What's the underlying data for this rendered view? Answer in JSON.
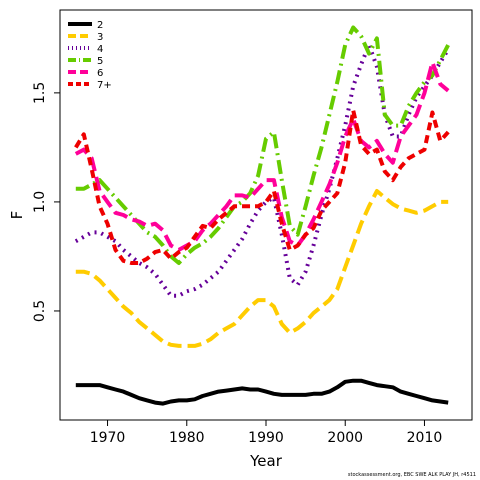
{
  "chart_data": {
    "type": "line",
    "title": "",
    "xlabel": "Year",
    "ylabel": "F",
    "xlim": [
      1964,
      2016
    ],
    "ylim": [
      0.0,
      1.88
    ],
    "x_ticks": [
      1970,
      1980,
      1990,
      2000,
      2010
    ],
    "y_ticks": [
      0.5,
      1.0,
      1.5
    ],
    "y_tick_labels": [
      "0.5",
      "1.0",
      "1.5"
    ],
    "legend_position": "top-left",
    "x": [
      1966,
      1967,
      1968,
      1969,
      1970,
      1971,
      1972,
      1973,
      1974,
      1975,
      1976,
      1977,
      1978,
      1979,
      1980,
      1981,
      1982,
      1983,
      1984,
      1985,
      1986,
      1987,
      1988,
      1989,
      1990,
      1991,
      1992,
      1993,
      1994,
      1995,
      1996,
      1997,
      1998,
      1999,
      2000,
      2001,
      2002,
      2003,
      2004,
      2005,
      2006,
      2007,
      2008,
      2009,
      2010,
      2011,
      2012,
      2013
    ],
    "series": [
      {
        "name": "2",
        "color": "#000000",
        "dash": "solid",
        "values": [
          0.16,
          0.16,
          0.16,
          0.16,
          0.15,
          0.14,
          0.13,
          0.115,
          0.1,
          0.09,
          0.08,
          0.075,
          0.085,
          0.09,
          0.09,
          0.095,
          0.11,
          0.12,
          0.13,
          0.135,
          0.14,
          0.145,
          0.14,
          0.14,
          0.13,
          0.12,
          0.115,
          0.115,
          0.115,
          0.115,
          0.12,
          0.12,
          0.13,
          0.15,
          0.175,
          0.18,
          0.18,
          0.17,
          0.16,
          0.155,
          0.15,
          0.13,
          0.12,
          0.11,
          0.1,
          0.09,
          0.085,
          0.08
        ]
      },
      {
        "name": "3",
        "color": "#ffcc00",
        "dash": "long",
        "values": [
          0.68,
          0.68,
          0.67,
          0.64,
          0.6,
          0.56,
          0.52,
          0.49,
          0.45,
          0.42,
          0.39,
          0.36,
          0.345,
          0.34,
          0.34,
          0.34,
          0.35,
          0.37,
          0.4,
          0.42,
          0.44,
          0.48,
          0.52,
          0.55,
          0.55,
          0.52,
          0.44,
          0.4,
          0.42,
          0.45,
          0.49,
          0.52,
          0.55,
          0.6,
          0.7,
          0.8,
          0.9,
          0.98,
          1.05,
          1.02,
          0.99,
          0.97,
          0.96,
          0.95,
          0.96,
          0.98,
          1.0,
          1.0
        ]
      },
      {
        "name": "4",
        "color": "#660099",
        "dash": "dotted",
        "values": [
          0.82,
          0.84,
          0.86,
          0.86,
          0.84,
          0.82,
          0.78,
          0.75,
          0.72,
          0.7,
          0.67,
          0.62,
          0.57,
          0.57,
          0.59,
          0.6,
          0.62,
          0.65,
          0.68,
          0.73,
          0.78,
          0.83,
          0.9,
          0.96,
          1.0,
          1.02,
          0.85,
          0.65,
          0.62,
          0.68,
          0.8,
          0.94,
          1.06,
          1.2,
          1.35,
          1.53,
          1.63,
          1.72,
          1.62,
          1.4,
          1.3,
          1.3,
          1.4,
          1.48,
          1.53,
          1.58,
          1.64,
          1.7
        ]
      },
      {
        "name": "5",
        "color": "#66cc00",
        "dash": "dashdot",
        "values": [
          1.06,
          1.06,
          1.08,
          1.1,
          1.06,
          1.02,
          0.98,
          0.94,
          0.9,
          0.86,
          0.84,
          0.8,
          0.75,
          0.72,
          0.76,
          0.79,
          0.81,
          0.84,
          0.88,
          0.93,
          0.98,
          1.0,
          1.04,
          1.12,
          1.29,
          1.32,
          1.1,
          0.89,
          0.85,
          0.98,
          1.12,
          1.25,
          1.4,
          1.55,
          1.72,
          1.8,
          1.76,
          1.68,
          1.75,
          1.4,
          1.35,
          1.35,
          1.44,
          1.5,
          1.55,
          1.58,
          1.65,
          1.72
        ]
      },
      {
        "name": "6",
        "color": "#ff0099",
        "dash": "long",
        "values": [
          1.22,
          1.24,
          1.2,
          1.05,
          1.0,
          0.95,
          0.94,
          0.92,
          0.91,
          0.89,
          0.9,
          0.87,
          0.8,
          0.78,
          0.8,
          0.82,
          0.87,
          0.9,
          0.94,
          0.98,
          1.03,
          1.03,
          1.02,
          1.06,
          1.1,
          1.1,
          0.93,
          0.82,
          0.8,
          0.85,
          0.92,
          1.0,
          1.08,
          1.18,
          1.3,
          1.38,
          1.28,
          1.25,
          1.28,
          1.22,
          1.18,
          1.3,
          1.35,
          1.4,
          1.5,
          1.64,
          1.54,
          1.51
        ]
      },
      {
        "name": "7+",
        "color": "#ee0000",
        "dash": "dashed",
        "values": [
          1.25,
          1.31,
          1.15,
          0.98,
          0.9,
          0.78,
          0.73,
          0.72,
          0.72,
          0.74,
          0.77,
          0.78,
          0.74,
          0.77,
          0.79,
          0.84,
          0.89,
          0.88,
          0.92,
          0.95,
          0.98,
          0.98,
          0.98,
          0.98,
          1.0,
          1.05,
          0.9,
          0.78,
          0.8,
          0.85,
          0.88,
          0.96,
          1.0,
          1.04,
          1.18,
          1.42,
          1.26,
          1.22,
          1.24,
          1.14,
          1.1,
          1.16,
          1.2,
          1.22,
          1.24,
          1.41,
          1.28,
          1.32
        ]
      }
    ]
  },
  "credit": "stockassessment.org, EBC SWE ALK PLAY JH, r4511"
}
